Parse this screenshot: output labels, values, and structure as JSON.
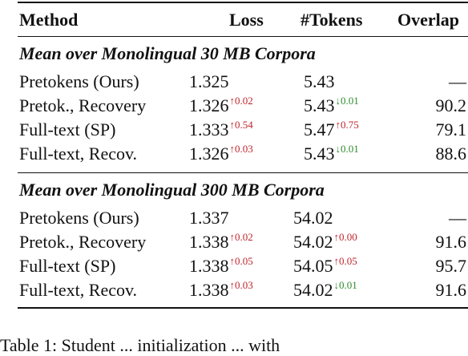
{
  "table": {
    "headers": {
      "method": "Method",
      "loss": "Loss",
      "tokens": "#Tokens",
      "overlap": "Overlap"
    },
    "sections": [
      {
        "title": "Mean over Monolingual 30 MB Corpora",
        "rows": [
          {
            "method": "Pretokens (Ours)",
            "loss": "1.325",
            "loss_delta": "",
            "loss_dir": "",
            "tokens": "5.43",
            "tokens_delta": "",
            "tokens_dir": "",
            "overlap": "—"
          },
          {
            "method": "Pretok., Recovery",
            "loss": "1.326",
            "loss_delta": "↑0.02",
            "loss_dir": "up",
            "tokens": "5.43",
            "tokens_delta": "↓0.01",
            "tokens_dir": "down",
            "overlap": "90.2"
          },
          {
            "method": "Full-text (SP)",
            "loss": "1.333",
            "loss_delta": "↑0.54",
            "loss_dir": "up",
            "tokens": "5.47",
            "tokens_delta": "↑0.75",
            "tokens_dir": "up",
            "overlap": "79.1"
          },
          {
            "method": "Full-text, Recov.",
            "loss": "1.326",
            "loss_delta": "↑0.03",
            "loss_dir": "up",
            "tokens": "5.43",
            "tokens_delta": "↓0.01",
            "tokens_dir": "down",
            "overlap": "88.6"
          }
        ]
      },
      {
        "title": "Mean over Monolingual 300 MB Corpora",
        "rows": [
          {
            "method": "Pretokens (Ours)",
            "loss": "1.337",
            "loss_delta": "",
            "loss_dir": "",
            "tokens": "54.02",
            "tokens_delta": "",
            "tokens_dir": "",
            "overlap": "—"
          },
          {
            "method": "Pretok., Recovery",
            "loss": "1.338",
            "loss_delta": "↑0.02",
            "loss_dir": "up",
            "tokens": "54.02",
            "tokens_delta": "↑0.00",
            "tokens_dir": "up",
            "overlap": "91.6"
          },
          {
            "method": "Full-text (SP)",
            "loss": "1.338",
            "loss_delta": "↑0.05",
            "loss_dir": "up",
            "tokens": "54.05",
            "tokens_delta": "↑0.05",
            "tokens_dir": "up",
            "overlap": "95.7"
          },
          {
            "method": "Full-text, Recov.",
            "loss": "1.338",
            "loss_delta": "↑0.03",
            "loss_dir": "up",
            "tokens": "54.02",
            "tokens_delta": "↓0.01",
            "tokens_dir": "down",
            "overlap": "91.6"
          }
        ]
      }
    ]
  },
  "caption_fragment": "Table 1: Student ... initialization ... with"
}
